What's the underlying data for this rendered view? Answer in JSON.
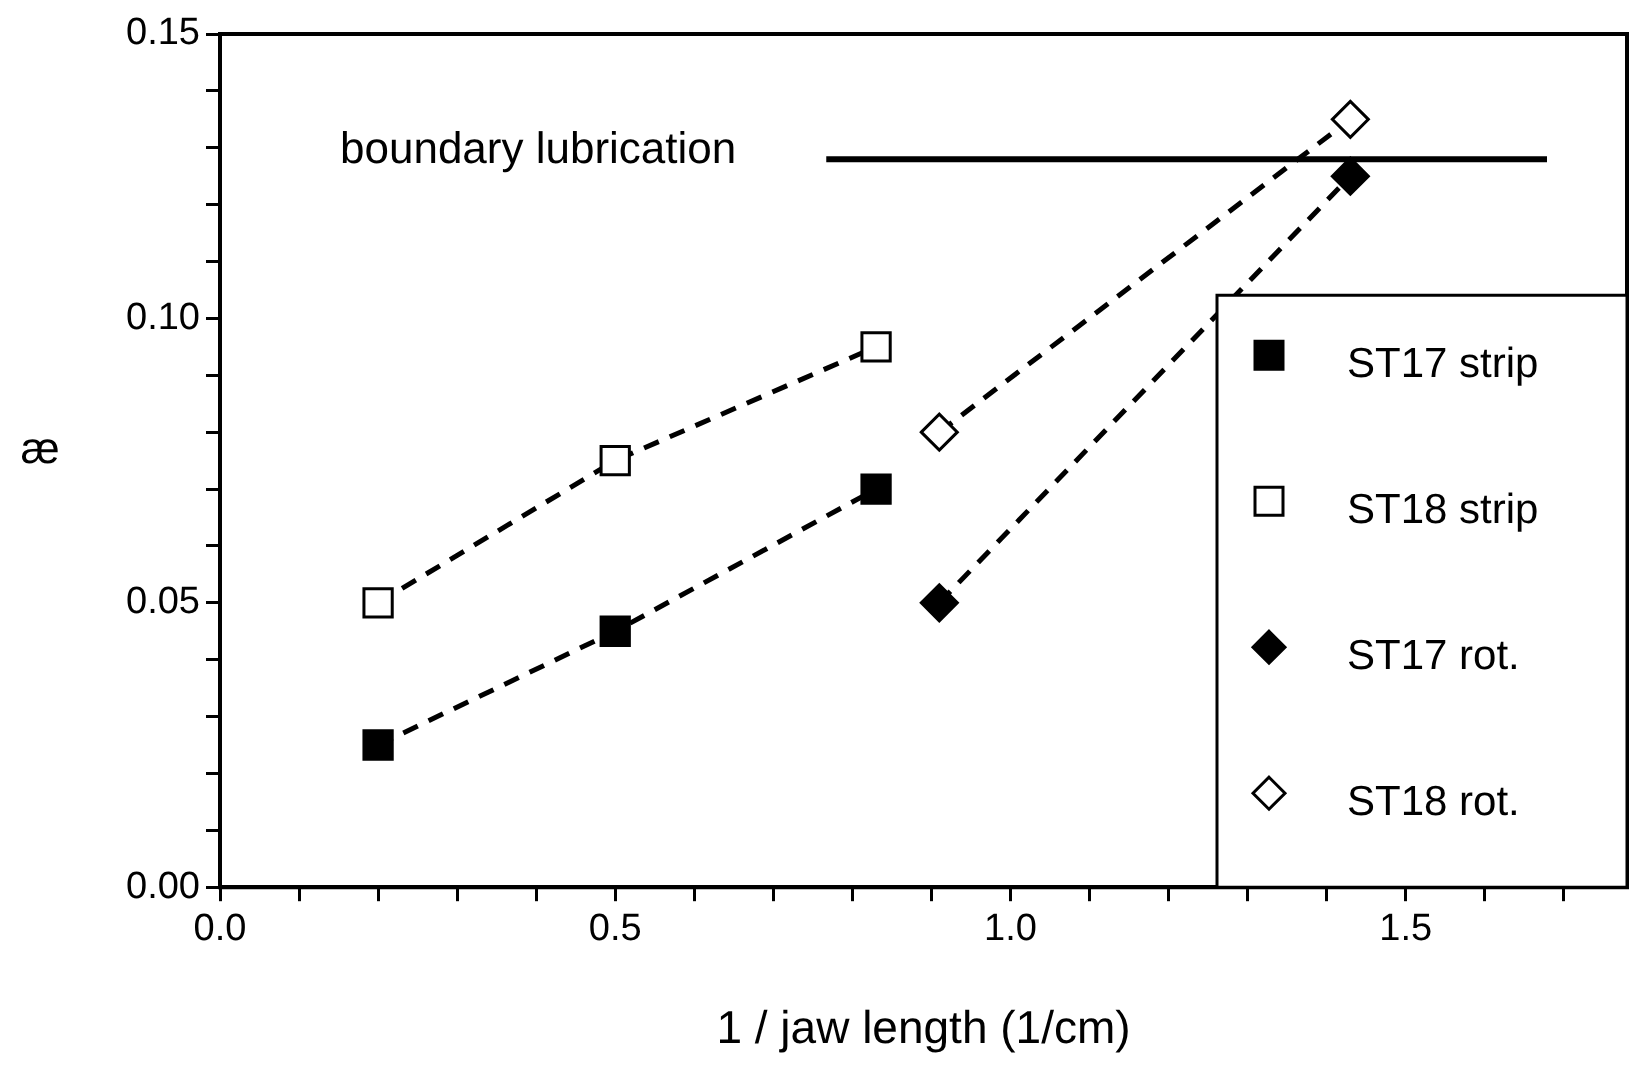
{
  "chart_data": {
    "type": "line",
    "xlabel": "1 / jaw length (1/cm)",
    "ylabel": "æ",
    "xlim": [
      0,
      1.78
    ],
    "ylim": [
      0,
      0.15
    ],
    "xticks": [
      {
        "value": 0,
        "label": "0.0"
      },
      {
        "value": 0.1,
        "label": null
      },
      {
        "value": 0.2,
        "label": null
      },
      {
        "value": 0.3,
        "label": null
      },
      {
        "value": 0.4,
        "label": null
      },
      {
        "value": 0.5,
        "label": "0.5"
      },
      {
        "value": 0.6,
        "label": null
      },
      {
        "value": 0.7,
        "label": null
      },
      {
        "value": 0.8,
        "label": null
      },
      {
        "value": 0.9,
        "label": null
      },
      {
        "value": 1,
        "label": "1.0"
      },
      {
        "value": 1.1,
        "label": null
      },
      {
        "value": 1.2,
        "label": null
      },
      {
        "value": 1.3,
        "label": null
      },
      {
        "value": 1.4,
        "label": null
      },
      {
        "value": 1.5,
        "label": "1.5"
      },
      {
        "value": 1.6,
        "label": null
      },
      {
        "value": 1.7,
        "label": null
      }
    ],
    "yticks": [
      {
        "value": 0,
        "label": "0.00"
      },
      {
        "value": 0.01,
        "label": null
      },
      {
        "value": 0.02,
        "label": null
      },
      {
        "value": 0.03,
        "label": null
      },
      {
        "value": 0.04,
        "label": null
      },
      {
        "value": 0.05,
        "label": "0.05"
      },
      {
        "value": 0.06,
        "label": null
      },
      {
        "value": 0.07,
        "label": null
      },
      {
        "value": 0.08,
        "label": null
      },
      {
        "value": 0.09,
        "label": null
      },
      {
        "value": 0.1,
        "label": "0.10"
      },
      {
        "value": 0.11,
        "label": null
      },
      {
        "value": 0.12,
        "label": null
      },
      {
        "value": 0.13,
        "label": null
      },
      {
        "value": 0.14,
        "label": null
      },
      {
        "value": 0.15,
        "label": "0.15"
      }
    ],
    "grid": false,
    "legend": "bottom right",
    "line_style": "dashed",
    "ref_lines": [
      {
        "axis": "y",
        "value": 0.128,
        "label": "boundary lubrication"
      }
    ],
    "series": [
      {
        "name": "ST17 strip",
        "color": "#000000",
        "marker": "square",
        "x": [
          0.2,
          0.5,
          0.83
        ],
        "values": [
          0.025,
          0.045,
          0.07
        ]
      },
      {
        "name": "ST18 strip",
        "color": "#ffffff",
        "marker": "square",
        "x": [
          0.2,
          0.5,
          0.83
        ],
        "values": [
          0.05,
          0.075,
          0.095
        ]
      },
      {
        "name": "ST17 rot.",
        "color": "#000000",
        "marker": "diamond",
        "x": [
          0.91,
          1.43
        ],
        "values": [
          0.05,
          0.125
        ]
      },
      {
        "name": "ST18 rot.",
        "color": "#ffffff",
        "marker": "diamond",
        "x": [
          0.91,
          1.43
        ],
        "values": [
          0.08,
          0.135
        ]
      }
    ]
  }
}
